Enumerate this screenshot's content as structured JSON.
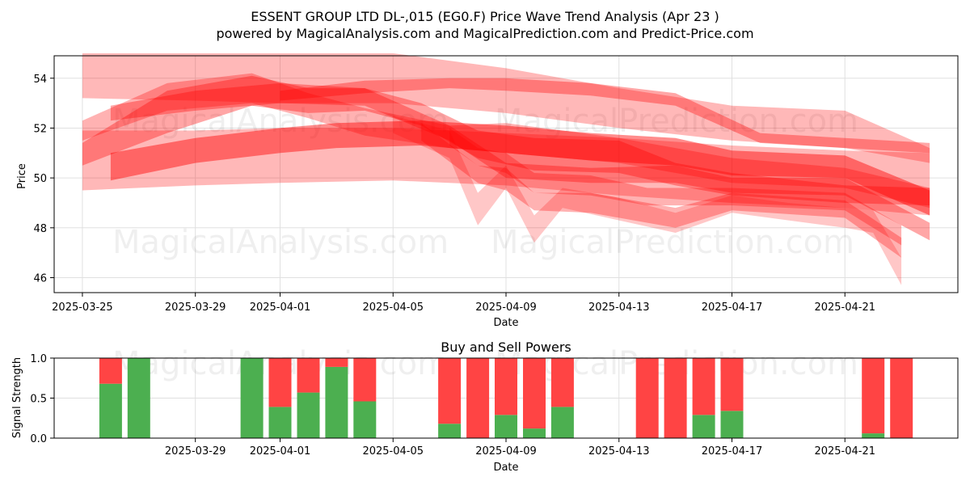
{
  "header": {
    "title": "ESSENT GROUP LTD  DL-,015 (EG0.F) Price Wave Trend Analysis (Apr 23 )",
    "subtitle": "powered by MagicalAnalysis.com and MagicalPrediction.com and Predict-Price.com"
  },
  "watermarks": {
    "left": "MagicalAnalysis.com",
    "right": "MagicalPrediction.com"
  },
  "colors": {
    "band": "#ff0000",
    "buy": "#4caf50",
    "sell": "#ff4444",
    "grid": "#e0e0e0"
  },
  "chart_data": [
    {
      "type": "area",
      "title": "",
      "xlabel": "Date",
      "ylabel": "Price",
      "xlim": [
        "2025-03-24",
        "2025-04-25"
      ],
      "ylim": [
        45.4,
        54.9
      ],
      "grid": true,
      "x_ticks": [
        "2025-03-25",
        "2025-03-29",
        "2025-04-01",
        "2025-04-05",
        "2025-04-09",
        "2025-04-13",
        "2025-04-17",
        "2025-04-21"
      ],
      "y_ticks": [
        46,
        48,
        50,
        52,
        54
      ],
      "series": [
        {
          "x": [
            "2025-03-25",
            "2025-03-29",
            "2025-04-01",
            "2025-04-05",
            "2025-04-09",
            "2025-04-13",
            "2025-04-17",
            "2025-04-21",
            "2025-04-24"
          ],
          "low": [
            53.2,
            53.1,
            53.0,
            53.0,
            52.6,
            52.0,
            51.5,
            51.2,
            50.6
          ],
          "high": [
            55.0,
            55.0,
            55.0,
            55.0,
            54.4,
            53.6,
            52.9,
            52.7,
            51.2
          ],
          "opacity": 0.28
        },
        {
          "x": [
            "2025-03-25",
            "2025-03-29",
            "2025-04-01",
            "2025-04-05",
            "2025-04-09",
            "2025-04-13",
            "2025-04-17",
            "2025-04-21",
            "2025-04-24"
          ],
          "low": [
            49.5,
            49.7,
            49.8,
            49.9,
            49.7,
            49.3,
            49.0,
            48.8,
            48.5
          ],
          "high": [
            51.9,
            51.9,
            52.0,
            52.0,
            51.8,
            51.6,
            51.3,
            51.1,
            51.0
          ],
          "opacity": 0.28
        },
        {
          "x": [
            "2025-03-25",
            "2025-03-28",
            "2025-03-31",
            "2025-04-02",
            "2025-04-04",
            "2025-04-06",
            "2025-04-08",
            "2025-04-10",
            "2025-04-13",
            "2025-04-15",
            "2025-04-17",
            "2025-04-21",
            "2025-04-24"
          ],
          "low": [
            50.5,
            51.8,
            52.9,
            52.6,
            52.7,
            52.1,
            50.8,
            50.3,
            50.2,
            49.7,
            49.3,
            49.0,
            48.9
          ],
          "high": [
            51.4,
            53.5,
            54.1,
            53.6,
            53.6,
            53.0,
            51.9,
            51.6,
            51.5,
            50.6,
            50.2,
            49.7,
            49.6
          ],
          "opacity": 0.35
        },
        {
          "x": [
            "2025-03-25",
            "2025-03-28",
            "2025-03-31",
            "2025-04-02",
            "2025-04-04",
            "2025-04-07",
            "2025-04-09",
            "2025-04-13",
            "2025-04-17",
            "2025-04-21",
            "2025-04-24"
          ],
          "low": [
            51.5,
            52.7,
            53.0,
            52.4,
            51.7,
            51.2,
            51.0,
            50.6,
            49.8,
            49.6,
            48.8
          ],
          "high": [
            52.3,
            53.8,
            54.2,
            53.4,
            52.8,
            52.1,
            52.2,
            51.6,
            50.8,
            50.4,
            49.6
          ],
          "opacity": 0.3
        },
        {
          "x": [
            "2025-03-26",
            "2025-03-29",
            "2025-04-01",
            "2025-04-03",
            "2025-04-06",
            "2025-04-09",
            "2025-04-12",
            "2025-04-15",
            "2025-04-17",
            "2025-04-21",
            "2025-04-24"
          ],
          "low": [
            49.9,
            50.6,
            51.0,
            51.2,
            51.3,
            51.0,
            50.7,
            50.5,
            50.1,
            50.0,
            48.5
          ],
          "high": [
            51.0,
            51.6,
            52.0,
            52.2,
            52.3,
            52.1,
            51.8,
            51.6,
            51.1,
            50.9,
            49.5
          ],
          "opacity": 0.45
        },
        {
          "x": [
            "2025-03-26",
            "2025-03-29",
            "2025-04-01",
            "2025-04-04",
            "2025-04-07",
            "2025-04-09",
            "2025-04-12",
            "2025-04-15",
            "2025-04-17",
            "2025-04-21",
            "2025-04-24"
          ],
          "low": [
            52.3,
            52.7,
            53.0,
            52.9,
            51.5,
            50.0,
            49.8,
            49.8,
            49.4,
            49.3,
            47.5
          ],
          "high": [
            52.9,
            53.5,
            53.8,
            53.6,
            52.1,
            50.6,
            50.4,
            50.5,
            50.0,
            50.0,
            48.2
          ],
          "opacity": 0.35
        },
        {
          "x": [
            "2025-04-01",
            "2025-04-04",
            "2025-04-07",
            "2025-04-09",
            "2025-04-12",
            "2025-04-15",
            "2025-04-18",
            "2025-04-21",
            "2025-04-24"
          ],
          "low": [
            53.1,
            53.4,
            53.6,
            53.5,
            53.3,
            52.9,
            51.4,
            51.2,
            51.0
          ],
          "high": [
            53.5,
            53.9,
            54.0,
            54.0,
            53.8,
            53.4,
            51.8,
            51.6,
            51.4
          ],
          "opacity": 0.35
        },
        {
          "x": [
            "2025-04-05",
            "2025-04-07",
            "2025-04-08",
            "2025-04-09",
            "2025-04-10",
            "2025-04-11",
            "2025-04-13",
            "2025-04-15",
            "2025-04-17",
            "2025-04-19",
            "2025-04-21",
            "2025-04-22",
            "2025-04-23"
          ],
          "low": [
            51.8,
            50.8,
            48.1,
            49.6,
            47.4,
            48.8,
            48.3,
            47.8,
            48.6,
            48.3,
            48.0,
            47.8,
            45.7
          ],
          "high": [
            52.5,
            51.9,
            49.4,
            50.5,
            48.5,
            49.6,
            49.2,
            48.6,
            49.3,
            49.0,
            48.8,
            48.7,
            46.8
          ],
          "opacity": 0.22
        },
        {
          "x": [
            "2025-04-06",
            "2025-04-08",
            "2025-04-09",
            "2025-04-10",
            "2025-04-12",
            "2025-04-15",
            "2025-04-17",
            "2025-04-21",
            "2025-04-23"
          ],
          "low": [
            51.5,
            49.8,
            49.5,
            48.7,
            48.6,
            48.0,
            48.7,
            48.4,
            46.8
          ],
          "high": [
            52.2,
            50.5,
            50.4,
            49.4,
            49.4,
            48.8,
            49.4,
            49.1,
            47.6
          ],
          "opacity": 0.3
        },
        {
          "x": [
            "2025-04-07",
            "2025-04-08",
            "2025-04-09",
            "2025-04-10",
            "2025-04-12",
            "2025-04-14",
            "2025-04-17",
            "2025-04-21",
            "2025-04-23"
          ],
          "low": [
            51.3,
            50.5,
            50.2,
            49.4,
            49.3,
            48.9,
            48.9,
            48.7,
            47.3
          ],
          "high": [
            52.0,
            51.2,
            51.0,
            50.2,
            50.1,
            49.6,
            49.6,
            49.4,
            48.1
          ],
          "opacity": 0.3
        }
      ]
    },
    {
      "type": "bar",
      "title": "Buy and Sell Powers",
      "xlabel": "Date",
      "ylabel": "Signal Strength",
      "xlim": [
        "2025-03-24",
        "2025-04-25"
      ],
      "ylim": [
        0,
        1
      ],
      "grid": true,
      "x_ticks": [
        "2025-03-29",
        "2025-04-01",
        "2025-04-05",
        "2025-04-09",
        "2025-04-13",
        "2025-04-17",
        "2025-04-21"
      ],
      "y_ticks": [
        "0.0",
        "0.5",
        "1.0"
      ],
      "dates": [
        "2025-03-26",
        "2025-03-27",
        "2025-03-31",
        "2025-04-01",
        "2025-04-02",
        "2025-04-03",
        "2025-04-04",
        "2025-04-07",
        "2025-04-08",
        "2025-04-09",
        "2025-04-10",
        "2025-04-11",
        "2025-04-14",
        "2025-04-15",
        "2025-04-16",
        "2025-04-17",
        "2025-04-22",
        "2025-04-23"
      ],
      "buy": [
        0.68,
        1.0,
        1.0,
        0.39,
        0.57,
        0.89,
        0.46,
        0.18,
        0.0,
        0.29,
        0.12,
        0.39,
        0.0,
        0.0,
        0.29,
        0.34,
        0.06,
        0.0
      ],
      "sell": [
        0.32,
        0.0,
        0.0,
        0.61,
        0.43,
        0.11,
        0.54,
        0.82,
        1.0,
        0.71,
        0.88,
        0.61,
        1.0,
        1.0,
        0.71,
        0.66,
        0.94,
        1.0
      ]
    }
  ]
}
